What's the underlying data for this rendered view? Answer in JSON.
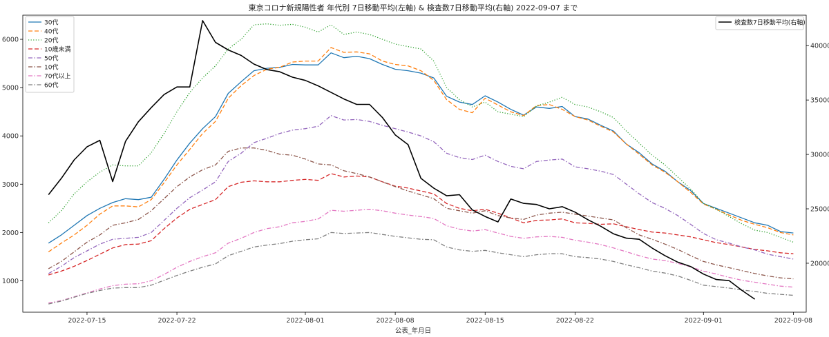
{
  "chart_data": {
    "type": "line",
    "title": "東京コロナ新規陽性者 年代別 7日移動平均(左軸) & 検査数7日移動平均(右軸) 2022-09-07 まで",
    "xlabel": "公表_年月日",
    "ylabel_left": "",
    "ylabel_right": "",
    "x_ticks": [
      "2022-07-15",
      "2022-07-22",
      "2022-08-01",
      "2022-08-08",
      "2022-08-15",
      "2022-08-22",
      "2022-09-01",
      "2022-09-08"
    ],
    "y_left_ticks": [
      1000,
      2000,
      3000,
      4000,
      5000,
      6000
    ],
    "y_right_ticks": [
      20000,
      25000,
      30000,
      35000,
      40000
    ],
    "ylim_left": [
      350,
      6500
    ],
    "ylim_right": [
      15500,
      42800
    ],
    "xlim": [
      "2022-07-10",
      "2022-09-09"
    ],
    "grid": false,
    "legend_left_position": "top-left",
    "legend_right_position": "top-right",
    "start_date": "2022-07-12",
    "series": [
      {
        "name": "30代",
        "axis": "left",
        "color": "#1f77b4",
        "dash": "solid",
        "values": [
          1780,
          1950,
          2150,
          2350,
          2500,
          2620,
          2700,
          2680,
          2730,
          3100,
          3500,
          3850,
          4150,
          4400,
          4880,
          5120,
          5350,
          5400,
          5420,
          5480,
          5470,
          5470,
          5720,
          5620,
          5650,
          5600,
          5480,
          5380,
          5350,
          5300,
          5200,
          4820,
          4700,
          4650,
          4830,
          4700,
          4550,
          4430,
          4600,
          4570,
          4610,
          4400,
          4350,
          4220,
          4100,
          3830,
          3650,
          3420,
          3270,
          3050,
          2870,
          2600,
          2500,
          2400,
          2300,
          2200,
          2150,
          2020,
          1990
        ]
      },
      {
        "name": "40代",
        "axis": "left",
        "color": "#ff7f0e",
        "dash": "dashed",
        "values": [
          1600,
          1780,
          1950,
          2150,
          2380,
          2550,
          2550,
          2530,
          2680,
          3030,
          3400,
          3720,
          4050,
          4300,
          4780,
          5040,
          5250,
          5380,
          5420,
          5530,
          5550,
          5550,
          5830,
          5730,
          5740,
          5700,
          5550,
          5480,
          5450,
          5350,
          5150,
          4750,
          4550,
          4480,
          4780,
          4640,
          4500,
          4420,
          4630,
          4650,
          4550,
          4400,
          4330,
          4200,
          4080,
          3830,
          3620,
          3400,
          3250,
          3050,
          2830,
          2590,
          2480,
          2360,
          2250,
          2170,
          2100,
          2000,
          1950
        ]
      },
      {
        "name": "20代",
        "axis": "left",
        "color": "#2ca02c",
        "dash": "dotted",
        "values": [
          2200,
          2450,
          2800,
          3050,
          3250,
          3400,
          3380,
          3380,
          3650,
          4050,
          4500,
          4900,
          5200,
          5450,
          5800,
          6000,
          6300,
          6320,
          6290,
          6310,
          6250,
          6150,
          6300,
          6100,
          6150,
          6100,
          6000,
          5900,
          5850,
          5800,
          5550,
          5000,
          4750,
          4600,
          4700,
          4500,
          4450,
          4400,
          4620,
          4700,
          4800,
          4650,
          4600,
          4500,
          4380,
          4100,
          3850,
          3600,
          3400,
          3150,
          2900,
          2600,
          2480,
          2330,
          2180,
          2050,
          2000,
          1900,
          1800
        ]
      },
      {
        "name": "10歳未満",
        "axis": "left",
        "color": "#d62728",
        "dash": "dashed",
        "values": [
          1120,
          1200,
          1300,
          1420,
          1550,
          1680,
          1750,
          1760,
          1830,
          2080,
          2300,
          2480,
          2580,
          2680,
          2950,
          3040,
          3070,
          3050,
          3050,
          3080,
          3100,
          3080,
          3220,
          3150,
          3170,
          3150,
          3050,
          2960,
          2920,
          2860,
          2800,
          2600,
          2500,
          2450,
          2480,
          2400,
          2300,
          2200,
          2250,
          2260,
          2280,
          2200,
          2190,
          2170,
          2180,
          2120,
          2060,
          2010,
          1990,
          1950,
          1910,
          1850,
          1790,
          1750,
          1700,
          1650,
          1620,
          1580,
          1560
        ]
      },
      {
        "name": "50代",
        "axis": "left",
        "color": "#9467bd",
        "dash": "dashdot",
        "values": [
          1150,
          1300,
          1480,
          1620,
          1760,
          1860,
          1880,
          1900,
          2000,
          2250,
          2500,
          2720,
          2880,
          3050,
          3470,
          3640,
          3860,
          3950,
          4050,
          4120,
          4150,
          4200,
          4420,
          4330,
          4340,
          4300,
          4220,
          4150,
          4080,
          4000,
          3880,
          3640,
          3550,
          3510,
          3600,
          3470,
          3370,
          3320,
          3470,
          3500,
          3520,
          3360,
          3320,
          3270,
          3200,
          3000,
          2800,
          2620,
          2500,
          2350,
          2170,
          1980,
          1850,
          1780,
          1700,
          1640,
          1550,
          1500,
          1450
        ]
      },
      {
        "name": "10代",
        "axis": "left",
        "color": "#8c564b",
        "dash": "dashdot",
        "values": [
          1250,
          1400,
          1600,
          1800,
          1950,
          2150,
          2200,
          2270,
          2450,
          2700,
          2950,
          3150,
          3300,
          3400,
          3680,
          3750,
          3750,
          3700,
          3620,
          3600,
          3520,
          3420,
          3400,
          3280,
          3220,
          3150,
          3050,
          2950,
          2860,
          2780,
          2700,
          2500,
          2450,
          2400,
          2450,
          2350,
          2300,
          2270,
          2360,
          2400,
          2420,
          2380,
          2340,
          2300,
          2260,
          2100,
          1950,
          1860,
          1760,
          1650,
          1520,
          1400,
          1330,
          1270,
          1210,
          1150,
          1100,
          1060,
          1040
        ]
      },
      {
        "name": "70代以上",
        "axis": "left",
        "color": "#e377c2",
        "dash": "dashdot",
        "values": [
          540,
          590,
          670,
          750,
          830,
          900,
          930,
          940,
          1000,
          1130,
          1280,
          1400,
          1500,
          1580,
          1780,
          1880,
          2000,
          2080,
          2120,
          2200,
          2230,
          2280,
          2460,
          2440,
          2460,
          2480,
          2450,
          2400,
          2360,
          2330,
          2290,
          2140,
          2070,
          2030,
          2060,
          1990,
          1920,
          1880,
          1910,
          1920,
          1900,
          1840,
          1800,
          1750,
          1680,
          1600,
          1520,
          1450,
          1420,
          1360,
          1290,
          1200,
          1140,
          1070,
          1010,
          970,
          930,
          890,
          870
        ]
      },
      {
        "name": "60代",
        "axis": "left",
        "color": "#7f7f7f",
        "dash": "dashdot",
        "values": [
          520,
          580,
          660,
          740,
          800,
          850,
          860,
          860,
          910,
          1010,
          1110,
          1200,
          1280,
          1350,
          1520,
          1610,
          1700,
          1740,
          1770,
          1820,
          1850,
          1870,
          2000,
          1980,
          1990,
          2000,
          1960,
          1920,
          1890,
          1860,
          1850,
          1700,
          1640,
          1610,
          1630,
          1580,
          1540,
          1500,
          1540,
          1560,
          1560,
          1500,
          1480,
          1450,
          1400,
          1330,
          1270,
          1200,
          1160,
          1100,
          1010,
          910,
          880,
          850,
          810,
          780,
          740,
          720,
          700
        ]
      },
      {
        "name": "検査数7日移動平均(右軸)",
        "axis": "right",
        "color": "#000000",
        "dash": "solid",
        "values": [
          26300,
          27800,
          29500,
          30700,
          31300,
          27500,
          31200,
          33000,
          34300,
          35500,
          36200,
          36200,
          42300,
          40300,
          39600,
          39100,
          38300,
          37800,
          37600,
          37100,
          36800,
          36300,
          35700,
          35100,
          34600,
          34600,
          33400,
          31800,
          30900,
          27800,
          26900,
          26200,
          26300,
          24900,
          24300,
          23800,
          25900,
          25500,
          25400,
          25000,
          25200,
          24700,
          24000,
          23400,
          22700,
          22300,
          22200,
          21400,
          20700,
          20100,
          19700,
          19000,
          18500,
          18400,
          17500,
          16700
        ]
      }
    ]
  }
}
